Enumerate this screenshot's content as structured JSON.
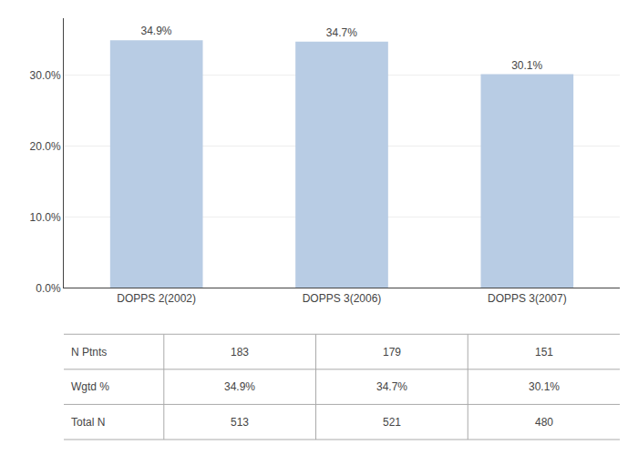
{
  "chart_data": {
    "type": "bar",
    "categories": [
      "DOPPS 2(2002)",
      "DOPPS 3(2006)",
      "DOPPS 3(2007)"
    ],
    "values": [
      34.9,
      34.7,
      30.1
    ],
    "value_labels": [
      "34.9%",
      "34.7%",
      "30.1%"
    ],
    "data_labels": true,
    "color": "#b8cce4",
    "ylim": [
      0,
      38
    ],
    "yticks": [
      {
        "value": 0,
        "label": "0.0%"
      },
      {
        "value": 10,
        "label": "10.0%"
      },
      {
        "value": 20,
        "label": "20.0%"
      },
      {
        "value": 30,
        "label": "30.0%"
      }
    ],
    "grid": true,
    "table": {
      "rows": [
        "N Ptnts",
        "Wgtd %",
        "Total N"
      ],
      "cells": [
        [
          "183",
          "179",
          "151"
        ],
        [
          "34.9%",
          "34.7%",
          "30.1%"
        ],
        [
          "513",
          "521",
          "480"
        ]
      ]
    }
  }
}
